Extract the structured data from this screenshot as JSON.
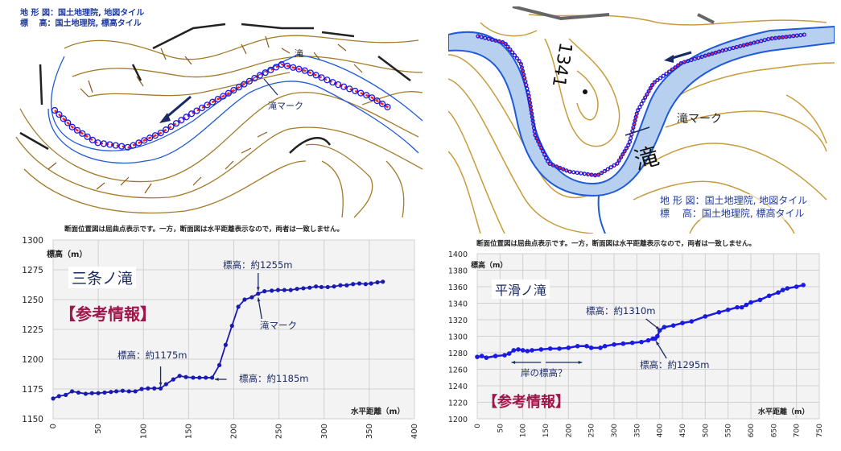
{
  "left_map": {
    "legend_line1": "地 形 図：国土地理院, 地図タイル",
    "legend_line2": "標　  高：国土地理院, 標高タイル",
    "waterfall_label": "滝",
    "waterfall_mark_label": "滝マーク",
    "colors": {
      "contour": "#a47a2a",
      "river": "#1f5ad8",
      "path_red": "#ff2020",
      "path_blue": "#1a1ae0"
    }
  },
  "right_map": {
    "legend_line1": "地 形 図：国土地理院, 地図タイル",
    "legend_line2": "標　  高：国土地理院, 標高タイル",
    "elevation_label": "1341",
    "waterfall_label": "滝",
    "waterfall_mark_label": "滝マーク",
    "colors": {
      "contour": "#c89b3c",
      "river": "#1f5ad8",
      "river_fill": "#b8d0f0",
      "path_red": "#ff2020",
      "path_blue": "#1a1ae0"
    }
  },
  "chart_data": [
    {
      "type": "line",
      "note": "断面位置図は屈曲点表示です。一方，断面図は水平距離表示なので，両者は一致しません。",
      "title": "三条ノ滝",
      "tag": "【参考情報】",
      "xlabel": "水平距離（m）",
      "ylabel": "標高（m）",
      "xlim": [
        0,
        400
      ],
      "ylim": [
        1150,
        1300
      ],
      "xticks": [
        0,
        50,
        100,
        150,
        200,
        250,
        300,
        350,
        400
      ],
      "yticks": [
        1150,
        1175,
        1200,
        1225,
        1250,
        1275,
        1300
      ],
      "grid": true,
      "color": "#1a1ab0",
      "annotations": [
        "標高：約1255m",
        "滝マーク",
        "標高：約1175m",
        "標高：約1185m"
      ],
      "x": [
        0,
        6.5,
        14,
        21,
        28,
        36,
        43,
        50,
        57,
        64,
        70,
        77,
        84,
        91,
        98,
        105,
        112,
        119,
        125,
        133,
        140,
        147,
        155,
        162,
        169,
        176,
        184,
        191,
        198,
        205,
        212,
        220,
        227,
        234,
        242,
        249,
        256,
        263,
        270,
        277,
        284,
        291,
        297,
        304,
        311,
        318,
        325,
        332,
        339,
        346,
        352,
        359,
        365
      ],
      "y": [
        1167,
        1169,
        1170,
        1173,
        1172,
        1171,
        1171.5,
        1171.5,
        1172,
        1172.5,
        1173,
        1173.5,
        1173,
        1173,
        1175,
        1175.5,
        1175.5,
        1175.5,
        1179,
        1183,
        1186,
        1185,
        1184.5,
        1184.5,
        1184.5,
        1184.5,
        1195,
        1212,
        1228,
        1244,
        1250,
        1252,
        1255,
        1257,
        1257.5,
        1258,
        1258,
        1258,
        1259,
        1259.5,
        1260,
        1261,
        1260.5,
        1260.5,
        1261,
        1262,
        1262,
        1263,
        1263.5,
        1263,
        1263.5,
        1264.5,
        1265
      ]
    },
    {
      "type": "line",
      "note": "断面位置図は屈曲点表示です。一方，断面図は水平距離表示なので，両者は一致しません。",
      "title": "平滑ノ滝",
      "tag": "【参考情報】",
      "xlabel": "水平距離（m）",
      "ylabel": "標高（m）",
      "xlim": [
        0,
        750
      ],
      "ylim": [
        1200,
        1400
      ],
      "xticks": [
        0,
        50,
        100,
        150,
        200,
        250,
        300,
        350,
        400,
        450,
        500,
        550,
        600,
        650,
        700,
        750
      ],
      "yticks": [
        1200,
        1220,
        1240,
        1260,
        1280,
        1300,
        1320,
        1340,
        1360,
        1380,
        1400
      ],
      "grid": true,
      "color": "#1a1ae0",
      "annotations": [
        "標高：約1310m",
        "標高：約1295m",
        "岸の標高？"
      ],
      "x": [
        0,
        10,
        20,
        40,
        60,
        70,
        80,
        90,
        100,
        110,
        120,
        140,
        160,
        180,
        200,
        220,
        240,
        250,
        270,
        280,
        300,
        320,
        340,
        360,
        375,
        385,
        390,
        395,
        400,
        410,
        430,
        450,
        470,
        500,
        530,
        550,
        570,
        580,
        590,
        600,
        620,
        640,
        660,
        670,
        680,
        700,
        715
      ],
      "y": [
        1275,
        1276,
        1274,
        1276,
        1277,
        1279,
        1283,
        1284,
        1283,
        1282,
        1283,
        1284,
        1285,
        1285,
        1286,
        1288,
        1288,
        1286,
        1286,
        1288,
        1290,
        1291,
        1292,
        1293,
        1295,
        1297,
        1297,
        1300,
        1307,
        1311,
        1313,
        1316,
        1318,
        1324,
        1329,
        1332,
        1335,
        1335,
        1338,
        1341,
        1344,
        1349,
        1353,
        1356,
        1358,
        1360,
        1362
      ]
    }
  ]
}
